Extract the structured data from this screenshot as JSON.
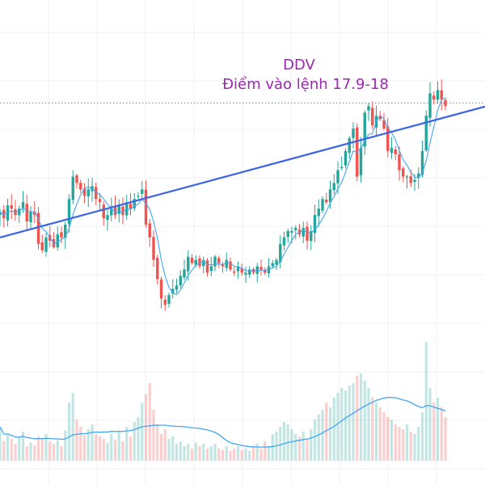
{
  "chart_data": {
    "type": "candlestick",
    "annotation_lines": [
      "DDV",
      "Điểm vào lệnh 17.9-18"
    ],
    "colors": {
      "up": "#26a69a",
      "down": "#ef5350",
      "annotation": "#9c27b0",
      "trendline": "#3c64e6",
      "volume_ma": "#42a5f5",
      "price_line": "#26a69a"
    },
    "price_range": [
      9.0,
      19.6
    ],
    "volume_range": [
      0,
      100
    ],
    "grid": true,
    "trendline": {
      "start": [
        0,
        13.7
      ],
      "end": [
        119,
        17.55
      ]
    },
    "price_line_value": 17.9,
    "ma_period": 5,
    "volume_ma_period": 20,
    "closes": [
      14.5,
      14.3,
      14.7,
      14.6,
      14.4,
      14.6,
      14.8,
      14.2,
      14.5,
      14.4,
      13.5,
      13.3,
      13.7,
      13.6,
      13.4,
      13.8,
      13.7,
      14.1,
      14.9,
      15.6,
      15.4,
      15.2,
      15.0,
      15.2,
      15.3,
      14.9,
      14.8,
      14.3,
      14.4,
      14.6,
      14.4,
      14.7,
      14.4,
      14.8,
      14.6,
      14.9,
      15.0,
      15.2,
      14.1,
      13.7,
      13.0,
      12.4,
      11.8,
      11.6,
      11.9,
      12.1,
      12.2,
      12.5,
      12.7,
      13.1,
      12.9,
      13.0,
      12.8,
      13.0,
      12.6,
      12.8,
      13.1,
      12.9,
      12.8,
      13.0,
      12.7,
      12.6,
      12.8,
      12.6,
      12.6,
      12.7,
      12.6,
      12.8,
      12.7,
      12.6,
      12.8,
      12.9,
      13.0,
      13.5,
      13.7,
      13.9,
      13.9,
      14.0,
      13.8,
      14.0,
      13.6,
      13.9,
      14.4,
      14.6,
      14.9,
      14.8,
      15.2,
      15.4,
      15.8,
      15.9,
      16.4,
      16.8,
      17.1,
      15.6,
      16.5,
      17.6,
      17.8,
      17.2,
      17.5,
      17.4,
      17.1,
      16.4,
      16.5,
      16.3,
      15.8,
      15.6,
      15.6,
      15.4,
      15.5,
      15.7,
      16.4,
      17.5,
      18.2,
      18.0,
      18.3,
      18.0,
      17.8
    ],
    "volumes": [
      28,
      16,
      22,
      18,
      14,
      19,
      24,
      12,
      15,
      13,
      20,
      18,
      22,
      16,
      14,
      17,
      12,
      25,
      48,
      56,
      34,
      28,
      21,
      26,
      30,
      22,
      20,
      18,
      15,
      22,
      17,
      24,
      16,
      28,
      20,
      32,
      36,
      48,
      55,
      64,
      42,
      30,
      22,
      26,
      18,
      20,
      14,
      16,
      12,
      14,
      10,
      15,
      12,
      14,
      10,
      12,
      14,
      10,
      9,
      12,
      8,
      10,
      12,
      9,
      10,
      8,
      12,
      14,
      10,
      16,
      12,
      22,
      24,
      28,
      32,
      30,
      26,
      22,
      20,
      24,
      18,
      26,
      34,
      38,
      42,
      48,
      44,
      52,
      56,
      60,
      58,
      62,
      64,
      70,
      72,
      66,
      60,
      52,
      48,
      44,
      40,
      36,
      34,
      30,
      28,
      26,
      30,
      24,
      22,
      28,
      40,
      98,
      60,
      48,
      52,
      44,
      36
    ]
  }
}
